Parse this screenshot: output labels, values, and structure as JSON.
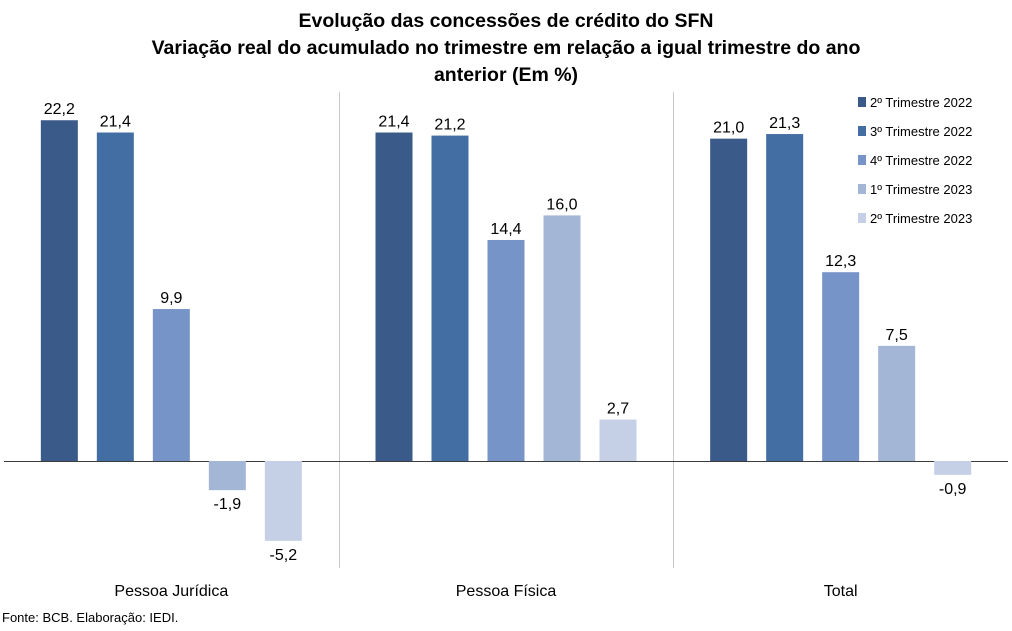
{
  "chart_data": {
    "type": "bar",
    "title_lines": [
      "Evolução das concessões de crédito do SFN",
      "Variação real do acumulado no trimestre em relação a igual trimestre do ano",
      "anterior (Em %)"
    ],
    "categories": [
      "Pessoa Jurídica",
      "Pessoa Física",
      "Total"
    ],
    "series": [
      {
        "name": "2º Trimestre 2022",
        "color": "#3a5a8a",
        "values": [
          22.2,
          21.4,
          21.0
        ],
        "labels": [
          "22,2",
          "21,4",
          "21,0"
        ]
      },
      {
        "name": "3º Trimestre 2022",
        "color": "#426ea3",
        "values": [
          21.4,
          21.2,
          21.3
        ],
        "labels": [
          "21,4",
          "21,2",
          "21,3"
        ]
      },
      {
        "name": "4º Trimestre 2022",
        "color": "#7694c8",
        "values": [
          9.9,
          14.4,
          12.3
        ],
        "labels": [
          "9,9",
          "14,4",
          "12,3"
        ]
      },
      {
        "name": "1º Trimestre 2023",
        "color": "#a3b6d6",
        "values": [
          -1.9,
          16.0,
          7.5
        ],
        "labels": [
          "-1,9",
          "16,0",
          "7,5"
        ]
      },
      {
        "name": "2º Trimestre 2023",
        "color": "#c5d0e6",
        "values": [
          -5.2,
          2.7,
          -0.9
        ],
        "labels": [
          "-5,2",
          "2,7",
          "-0,9"
        ]
      }
    ],
    "ylim": [
      -7,
      24.5
    ],
    "grid": false,
    "legend_position": "top-right",
    "source": "Fonte: BCB. Elaboração: IEDI."
  }
}
